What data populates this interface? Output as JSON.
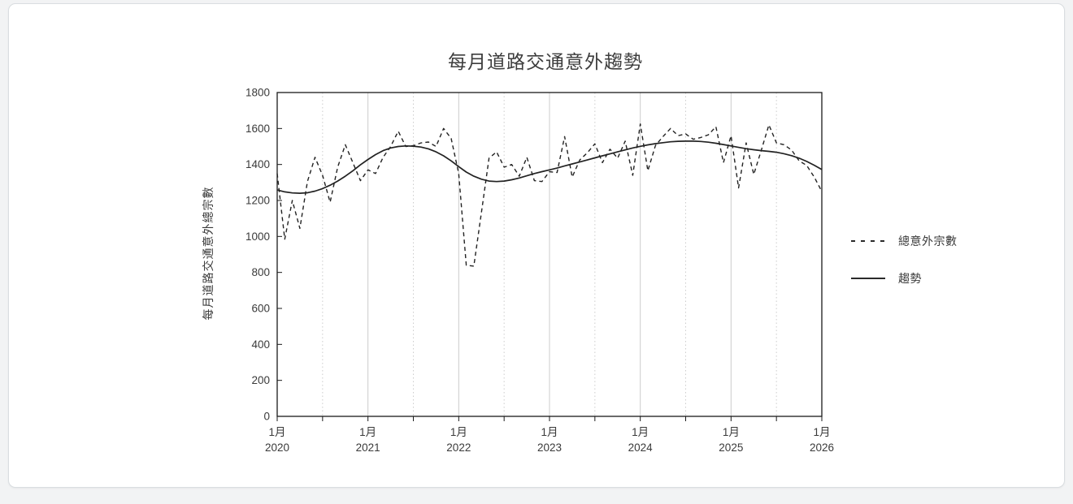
{
  "page": {
    "background_color": "#f2f3f4",
    "card_background": "#ffffff",
    "card_border_color": "#d9dde0"
  },
  "chart_data": {
    "type": "line",
    "title": "每月道路交通意外趨勢",
    "xlabel": "",
    "ylabel": "每月道路交通意外總宗數",
    "ylim": [
      0,
      1800
    ],
    "ytick_step": 200,
    "ytick_labels": [
      "0",
      "200",
      "400",
      "600",
      "800",
      "1000",
      "1200",
      "1400",
      "1600",
      "1800"
    ],
    "x_range_months": 72,
    "x_tick_month_label": "1月",
    "x_tick_years": [
      "2020",
      "2021",
      "2022",
      "2023",
      "2024",
      "2025",
      "2026"
    ],
    "grid": "vertical only: solid line each January, dotted line each July",
    "legend_position": "right",
    "line_color": "#222222",
    "gridline_color": "#cccccc",
    "series": [
      {
        "name": "總意外宗數",
        "style": "dashed",
        "x_start": "2020-01",
        "x_step": "1 month",
        "values": [
          1350,
          985,
          1200,
          1045,
          1305,
          1440,
          1340,
          1190,
          1385,
          1510,
          1410,
          1310,
          1370,
          1350,
          1440,
          1500,
          1585,
          1500,
          1505,
          1520,
          1525,
          1500,
          1600,
          1545,
          1350,
          840,
          835,
          1135,
          1435,
          1470,
          1385,
          1400,
          1335,
          1440,
          1310,
          1305,
          1360,
          1355,
          1555,
          1330,
          1425,
          1465,
          1515,
          1410,
          1485,
          1435,
          1530,
          1340,
          1625,
          1365,
          1505,
          1555,
          1600,
          1560,
          1570,
          1540,
          1550,
          1565,
          1610,
          1410,
          1560,
          1270,
          1520,
          1345,
          1480,
          1620,
          1520,
          1510,
          1480,
          1420,
          1395,
          1330,
          1250
        ]
      },
      {
        "name": "趨勢",
        "style": "solid",
        "x_start": "2020-01",
        "x_step": "1 month",
        "values": [
          1258,
          1248,
          1242,
          1240,
          1243,
          1252,
          1266,
          1285,
          1308,
          1335,
          1365,
          1398,
          1428,
          1455,
          1477,
          1492,
          1500,
          1503,
          1502,
          1497,
          1487,
          1470,
          1448,
          1420,
          1388,
          1358,
          1335,
          1318,
          1308,
          1305,
          1308,
          1315,
          1325,
          1337,
          1350,
          1360,
          1370,
          1380,
          1392,
          1403,
          1414,
          1425,
          1437,
          1448,
          1459,
          1470,
          1481,
          1492,
          1501,
          1509,
          1516,
          1521,
          1526,
          1529,
          1530,
          1530,
          1528,
          1524,
          1518,
          1511,
          1503,
          1495,
          1488,
          1482,
          1477,
          1473,
          1468,
          1460,
          1449,
          1435,
          1417,
          1396,
          1372
        ]
      }
    ]
  }
}
